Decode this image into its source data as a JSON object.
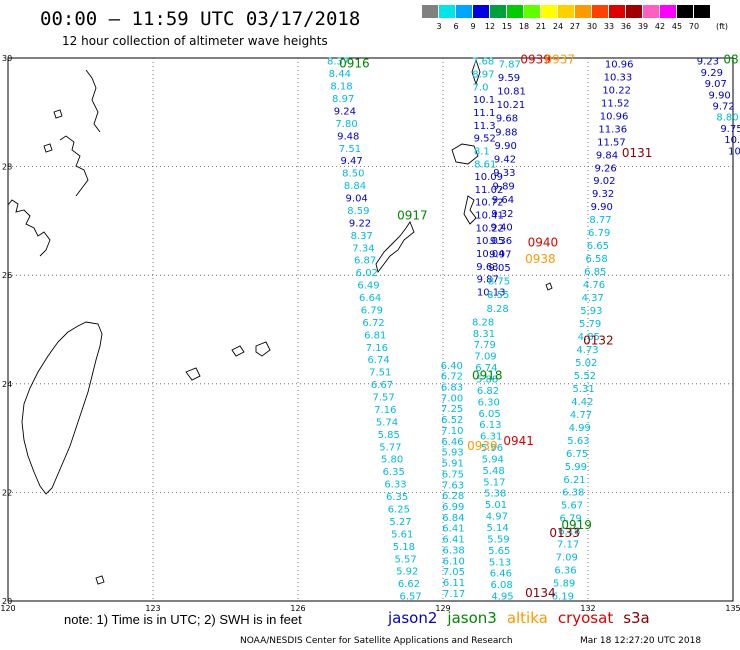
{
  "title": "00:00 – 11:59 UTC 03/17/2018",
  "subtitle": "12 hour collection of altimeter wave heights",
  "legend": {
    "unit": "(ft)",
    "bins": [
      {
        "label": "3",
        "color": "#808080"
      },
      {
        "label": "6",
        "color": "#00e5e5"
      },
      {
        "label": "9",
        "color": "#00a5ff"
      },
      {
        "label": "12",
        "color": "#0000e0"
      },
      {
        "label": "15",
        "color": "#00a040"
      },
      {
        "label": "18",
        "color": "#00cc00"
      },
      {
        "label": "21",
        "color": "#60ff00"
      },
      {
        "label": "24",
        "color": "#ffff00"
      },
      {
        "label": "27",
        "color": "#ffd000"
      },
      {
        "label": "30",
        "color": "#ff9900"
      },
      {
        "label": "33",
        "color": "#ff4000"
      },
      {
        "label": "36",
        "color": "#e00000"
      },
      {
        "label": "39",
        "color": "#a00000"
      },
      {
        "label": "42",
        "color": "#ff60c0"
      },
      {
        "label": "45",
        "color": "#ff00ff"
      },
      {
        "label": "70",
        "color": "#000000"
      },
      {
        "label": "",
        "color": "#000000"
      }
    ]
  },
  "axes": {
    "lon_labels": [
      "120",
      "123",
      "126",
      "129",
      "132",
      "135"
    ],
    "lat_labels": [
      "30",
      "28",
      "26",
      "24",
      "22",
      "20"
    ]
  },
  "footer": {
    "note": "note: 1) Time is in UTC; 2) SWH is in feet",
    "satellites": [
      {
        "name": "jason2",
        "color": "#0000cc"
      },
      {
        "name": "jason3",
        "color": "#008800"
      },
      {
        "name": "altika",
        "color": "#ff9900"
      },
      {
        "name": "cryosat",
        "color": "#dd0000"
      },
      {
        "name": "s3a",
        "color": "#880000"
      }
    ],
    "credit": "NOAA/NESDIS Center for Satellite Applications and Research",
    "timestamp": "Mar 18 12:27:20 UTC 2018"
  },
  "pass_labels": [
    {
      "text": "0916",
      "lon": 126.85,
      "lat": 29.9,
      "color": "#008800"
    },
    {
      "text": "0917",
      "lon": 128.05,
      "lat": 27.1,
      "color": "#008800"
    },
    {
      "text": "0918",
      "lon": 129.6,
      "lat": 24.15,
      "color": "#008800"
    },
    {
      "text": "0919",
      "lon": 131.45,
      "lat": 21.4,
      "color": "#008800"
    },
    {
      "text": "0939",
      "lon": 130.6,
      "lat": 29.97,
      "color": "#dd0000"
    },
    {
      "text": "0937",
      "lon": 131.1,
      "lat": 29.97,
      "color": "#ff9900"
    },
    {
      "text": "0940",
      "lon": 130.75,
      "lat": 26.6,
      "color": "#dd0000"
    },
    {
      "text": "0938",
      "lon": 130.7,
      "lat": 26.3,
      "color": "#ff9900"
    },
    {
      "text": "0941",
      "lon": 130.25,
      "lat": 22.95,
      "color": "#dd0000"
    },
    {
      "text": "0939",
      "lon": 129.5,
      "lat": 22.85,
      "color": "#ff9900"
    },
    {
      "text": "0131",
      "lon": 132.7,
      "lat": 28.25,
      "color": "#880000"
    },
    {
      "text": "0132",
      "lon": 131.9,
      "lat": 24.8,
      "color": "#880000"
    },
    {
      "text": "0133",
      "lon": 131.2,
      "lat": 21.25,
      "color": "#880000"
    },
    {
      "text": "0134",
      "lon": 130.7,
      "lat": 20.15,
      "color": "#880000"
    },
    {
      "text": "08",
      "lon": 134.8,
      "lat": 29.97,
      "color": "#008800"
    }
  ],
  "tracks": [
    {
      "name": "jason3-0916-0917-0918-0919",
      "values": [
        "8.37",
        "8.44",
        "8.18",
        "8.97",
        "9.24",
        "7.80",
        "9.48",
        "7.51",
        "9.47",
        "8.50",
        "8.84",
        "9.04",
        "8.59",
        "9.22",
        "8.37",
        "7.34",
        "6.87",
        "6.02",
        "6.49",
        "6.64",
        "6.79",
        "6.72",
        "6.81",
        "7.16",
        "6.74",
        "7.51",
        "6.67",
        "7.57",
        "7.16",
        "5.74",
        "5.85",
        "5.77",
        "5.80",
        "6.35",
        "6.33",
        "6.35",
        "6.25",
        "5.27",
        "5.61",
        "5.18",
        "5.57",
        "5.92",
        "6.62",
        "6.57"
      ],
      "start": {
        "lon": 126.6,
        "lat": 29.95
      },
      "end": {
        "lon": 128.1,
        "lat": 20.1
      }
    },
    {
      "name": "jason2-northern-mid",
      "values": [
        "7.68",
        "8.97",
        "7.0",
        "10.1",
        "11.1",
        "11.3",
        "9.52",
        "8.1",
        "8.61",
        "10.09",
        "11.02",
        "10.72",
        "10.41",
        "10.22",
        "10.05",
        "10.04",
        "9.63",
        "9.87",
        "10.13"
      ],
      "start": {
        "lon": 129.6,
        "lat": 29.95
      },
      "end": {
        "lon": 129.7,
        "lat": 25.7
      }
    },
    {
      "name": "jason2-mid-branch",
      "values": [
        "7.87",
        "9.59",
        "10.81",
        "10.21",
        "9.68",
        "9.88",
        "9.90",
        "9.42",
        "9.33",
        "9.89",
        "9.64",
        "9.32",
        "9.40",
        "9.36",
        "9.97",
        "9.05",
        "8.75",
        "8.55",
        "8.28"
      ],
      "start": {
        "lon": 130.15,
        "lat": 29.9
      },
      "end": {
        "lon": 129.9,
        "lat": 25.4
      }
    },
    {
      "name": "jason2-southern-strip",
      "values": [
        "8.28",
        "8.31",
        "7.79",
        "7.09",
        "6.74",
        "5.88",
        "6.82",
        "6.30",
        "6.05",
        "6.13",
        "6.31",
        "5.96",
        "5.94",
        "5.48",
        "5.17",
        "5.38",
        "5.01",
        "4.97",
        "5.14",
        "5.59",
        "5.65",
        "5.13",
        "6.46",
        "6.08",
        "4.95"
      ],
      "start": {
        "lon": 129.6,
        "lat": 25.15
      },
      "end": {
        "lon": 130.0,
        "lat": 20.1
      }
    },
    {
      "name": "cryosat-0131-0132",
      "values": [
        "10.96",
        "10.33",
        "10.22",
        "11.52",
        "10.96",
        "11.36",
        "11.57",
        "9.84",
        "9.26",
        "9.02",
        "9.32",
        "9.90",
        "8.77",
        "6.79",
        "6.65",
        "6.58",
        "6.85",
        "4.76",
        "4.37",
        "5.93",
        "5.79",
        "4.85",
        "4.73",
        "5.02",
        "5.52",
        "5.31",
        "4.42",
        "4.77",
        "4.99",
        "5.63",
        "6.75",
        "5.99",
        "6.21",
        "6.38",
        "5.67",
        "6.79",
        "6.18",
        "7.17",
        "7.09",
        "6.36",
        "5.89",
        "6.19"
      ],
      "start": {
        "lon": 132.35,
        "lat": 29.9
      },
      "end": {
        "lon": 131.25,
        "lat": 20.1
      }
    },
    {
      "name": "jason3-western-inner",
      "values": [
        "6.40",
        "6.72",
        "6.83",
        "7.00",
        "7.25",
        "6.52",
        "7.10",
        "6.46",
        "5.93",
        "5.91",
        "6.75",
        "7.63",
        "6.28",
        "6.99",
        "6.84",
        "6.41",
        "6.41",
        "6.38",
        "6.10",
        "7.05",
        "6.11",
        "7.17"
      ],
      "start": {
        "lon": 128.95,
        "lat": 24.35
      },
      "end": {
        "lon": 129.0,
        "lat": 20.15
      }
    },
    {
      "name": "cryosat-northeast",
      "values": [
        "9.23",
        "9.29",
        "9.07",
        "9.90",
        "9.72",
        "8.80",
        "9.75",
        "10.2",
        "10"
      ],
      "start": {
        "lon": 134.25,
        "lat": 29.95
      },
      "end": {
        "lon": 134.9,
        "lat": 28.3
      }
    }
  ]
}
